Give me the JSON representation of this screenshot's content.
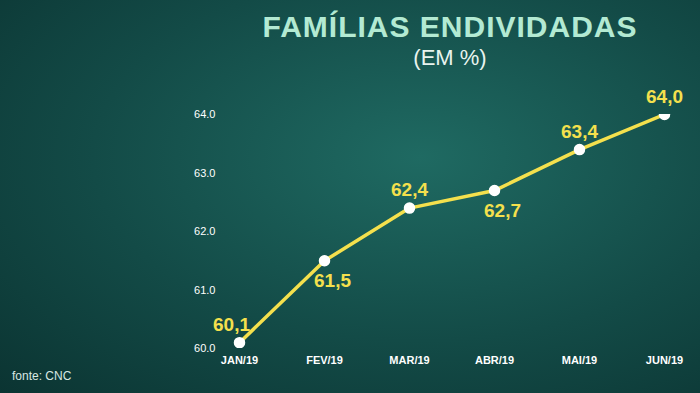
{
  "chart_data": {
    "type": "line",
    "title": "FAMÍLIAS ENDIVIDADAS",
    "subtitle": "(EM %)",
    "caption": "fonte: CNC",
    "categories": [
      "JAN/19",
      "FEV/19",
      "MAR/19",
      "ABR/19",
      "MAI/19",
      "JUN/19"
    ],
    "values": [
      60.1,
      61.5,
      62.4,
      62.7,
      63.4,
      64.0
    ],
    "value_labels": [
      "60,1",
      "61,5",
      "62,4",
      "62,7",
      "63,4",
      "64,0"
    ],
    "color": "#f4e04d",
    "marker": "circle",
    "line_style": "solid",
    "ylim": [
      60,
      64
    ],
    "yticks": [
      60,
      61,
      62,
      63,
      64
    ],
    "grid": false,
    "data_labels": true
  }
}
